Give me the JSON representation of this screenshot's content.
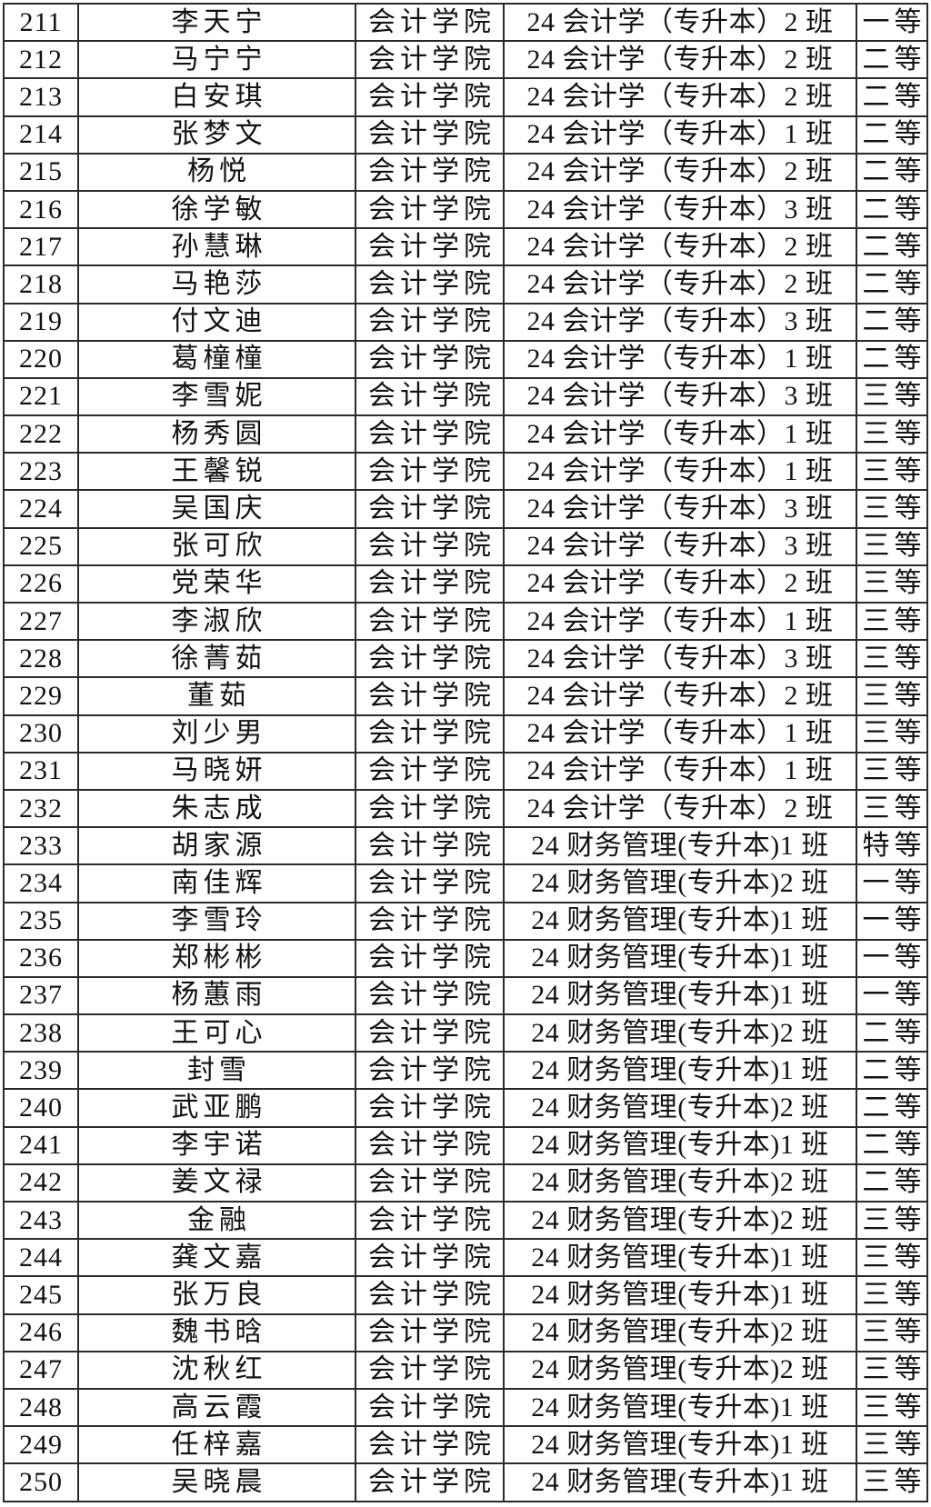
{
  "page": {
    "background_color": "#ffffff",
    "border_color": "#2a2a2a",
    "text_color": "#121212"
  },
  "table": {
    "column_semantic_names": [
      "serial",
      "name",
      "college",
      "class",
      "award"
    ],
    "rows": [
      [
        "211",
        "李天宁",
        "会计学院",
        "24 会计学（专升本）2 班",
        "一等"
      ],
      [
        "212",
        "马宁宁",
        "会计学院",
        "24 会计学（专升本）2 班",
        "二等"
      ],
      [
        "213",
        "白安琪",
        "会计学院",
        "24 会计学（专升本）2 班",
        "二等"
      ],
      [
        "214",
        "张梦文",
        "会计学院",
        "24 会计学（专升本）1 班",
        "二等"
      ],
      [
        "215",
        "杨悦",
        "会计学院",
        "24 会计学（专升本）2 班",
        "二等"
      ],
      [
        "216",
        "徐学敏",
        "会计学院",
        "24 会计学（专升本）3 班",
        "二等"
      ],
      [
        "217",
        "孙慧琳",
        "会计学院",
        "24 会计学（专升本）2 班",
        "二等"
      ],
      [
        "218",
        "马艳莎",
        "会计学院",
        "24 会计学（专升本）2 班",
        "二等"
      ],
      [
        "219",
        "付文迪",
        "会计学院",
        "24 会计学（专升本）3 班",
        "二等"
      ],
      [
        "220",
        "葛橦橦",
        "会计学院",
        "24 会计学（专升本）1 班",
        "二等"
      ],
      [
        "221",
        "李雪妮",
        "会计学院",
        "24 会计学（专升本）3 班",
        "三等"
      ],
      [
        "222",
        "杨秀圆",
        "会计学院",
        "24 会计学（专升本）1 班",
        "三等"
      ],
      [
        "223",
        "王馨锐",
        "会计学院",
        "24 会计学（专升本）1 班",
        "三等"
      ],
      [
        "224",
        "吴国庆",
        "会计学院",
        "24 会计学（专升本）3 班",
        "三等"
      ],
      [
        "225",
        "张可欣",
        "会计学院",
        "24 会计学（专升本）3 班",
        "三等"
      ],
      [
        "226",
        "党荣华",
        "会计学院",
        "24 会计学（专升本）2 班",
        "三等"
      ],
      [
        "227",
        "李淑欣",
        "会计学院",
        "24 会计学（专升本）1 班",
        "三等"
      ],
      [
        "228",
        "徐菁茹",
        "会计学院",
        "24 会计学（专升本）3 班",
        "三等"
      ],
      [
        "229",
        "董茹",
        "会计学院",
        "24 会计学（专升本）2 班",
        "三等"
      ],
      [
        "230",
        "刘少男",
        "会计学院",
        "24 会计学（专升本）1 班",
        "三等"
      ],
      [
        "231",
        "马晓妍",
        "会计学院",
        "24 会计学（专升本）1 班",
        "三等"
      ],
      [
        "232",
        "朱志成",
        "会计学院",
        "24 会计学（专升本）2 班",
        "三等"
      ],
      [
        "233",
        "胡家源",
        "会计学院",
        "24 财务管理(专升本)1 班",
        "特等"
      ],
      [
        "234",
        "南佳辉",
        "会计学院",
        "24 财务管理(专升本)2 班",
        "一等"
      ],
      [
        "235",
        "李雪玲",
        "会计学院",
        "24 财务管理(专升本)1 班",
        "一等"
      ],
      [
        "236",
        "郑彬彬",
        "会计学院",
        "24 财务管理(专升本)1 班",
        "一等"
      ],
      [
        "237",
        "杨蕙雨",
        "会计学院",
        "24 财务管理(专升本)1 班",
        "一等"
      ],
      [
        "238",
        "王可心",
        "会计学院",
        "24 财务管理(专升本)2 班",
        "二等"
      ],
      [
        "239",
        "封雪",
        "会计学院",
        "24 财务管理(专升本)1 班",
        "二等"
      ],
      [
        "240",
        "武亚鹏",
        "会计学院",
        "24 财务管理(专升本)2 班",
        "二等"
      ],
      [
        "241",
        "李宇诺",
        "会计学院",
        "24 财务管理(专升本)1 班",
        "二等"
      ],
      [
        "242",
        "姜文禄",
        "会计学院",
        "24 财务管理(专升本)2 班",
        "二等"
      ],
      [
        "243",
        "金融",
        "会计学院",
        "24 财务管理(专升本)2 班",
        "三等"
      ],
      [
        "244",
        "龚文嘉",
        "会计学院",
        "24 财务管理(专升本)1 班",
        "三等"
      ],
      [
        "245",
        "张万良",
        "会计学院",
        "24 财务管理(专升本)1 班",
        "三等"
      ],
      [
        "246",
        "魏书晗",
        "会计学院",
        "24 财务管理(专升本)2 班",
        "三等"
      ],
      [
        "247",
        "沈秋红",
        "会计学院",
        "24 财务管理(专升本)2 班",
        "三等"
      ],
      [
        "248",
        "高云霞",
        "会计学院",
        "24 财务管理(专升本)1 班",
        "三等"
      ],
      [
        "249",
        "任梓嘉",
        "会计学院",
        "24 财务管理(专升本)1 班",
        "三等"
      ],
      [
        "250",
        "吴晓晨",
        "会计学院",
        "24 财务管理(专升本)1 班",
        "三等"
      ]
    ]
  }
}
